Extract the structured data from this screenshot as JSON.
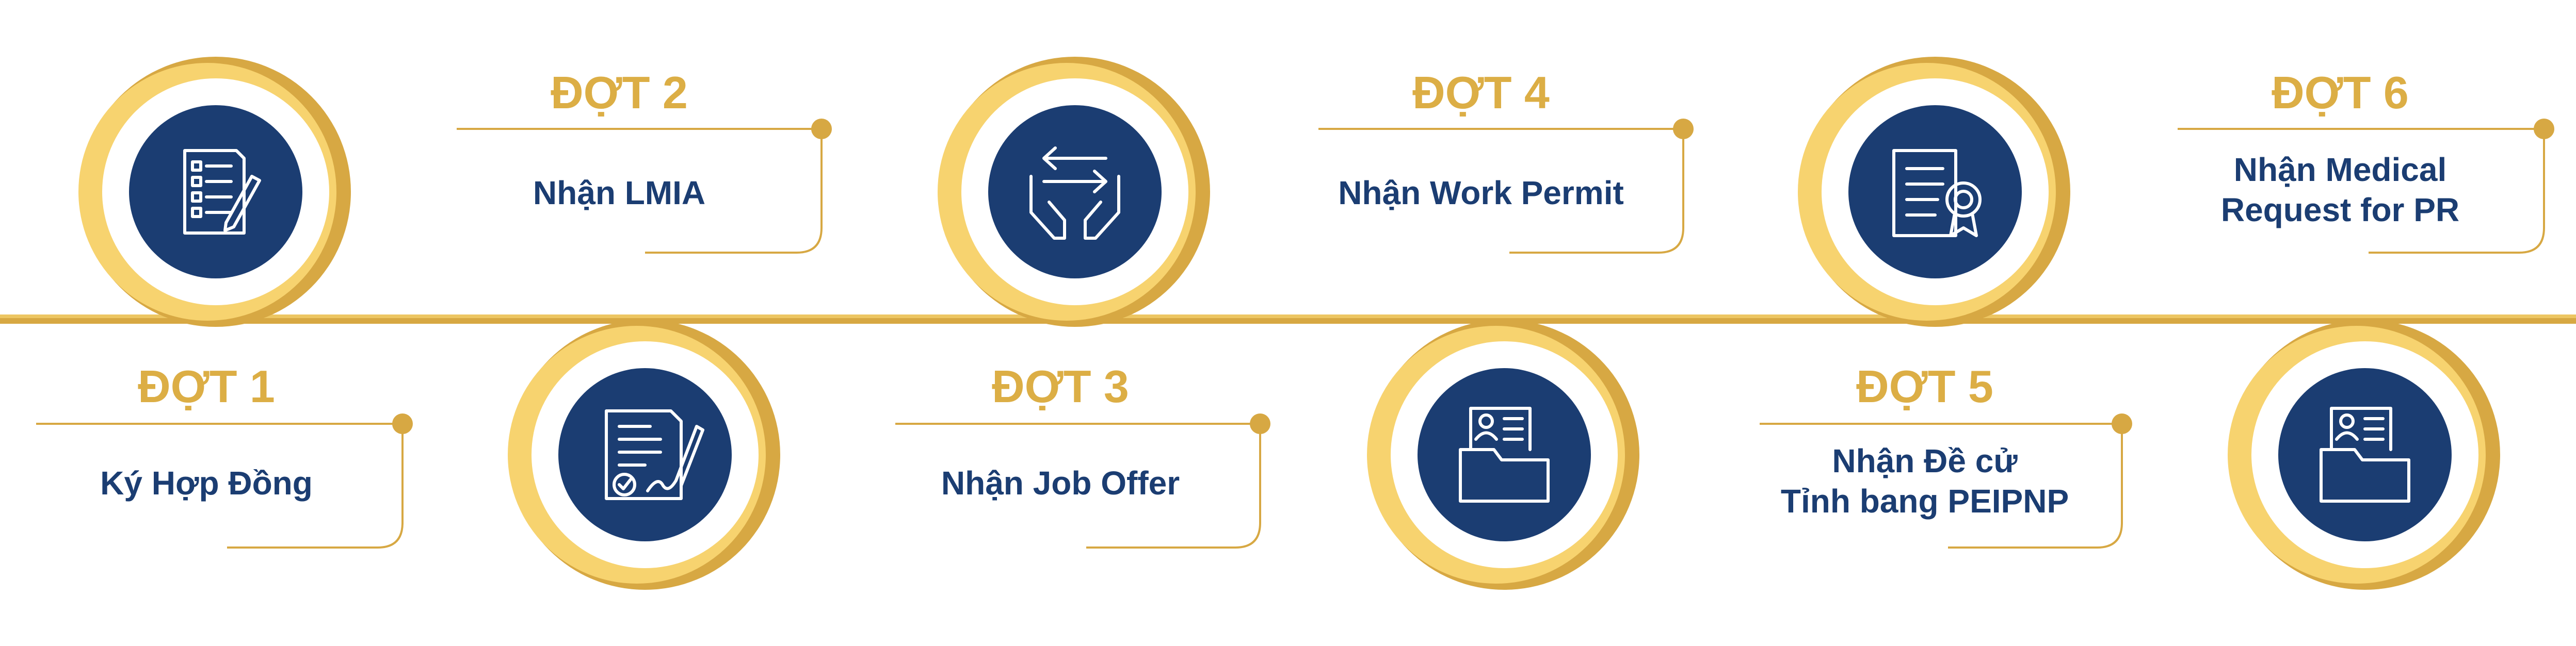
{
  "colors": {
    "gold_light": "#f7d36f",
    "gold_dark": "#d7a843",
    "navy": "#1b3d72",
    "heading_gold": "#dcae45"
  },
  "steps": [
    {
      "title": "ĐỢT 1",
      "lines": [
        "Ký Hợp Đồng"
      ],
      "icon": "checklist-icon"
    },
    {
      "title": "ĐỢT 2",
      "lines": [
        "Nhận LMIA"
      ],
      "icon": "signed-document-icon"
    },
    {
      "title": "ĐỢT 3",
      "lines": [
        "Nhận Job Offer"
      ],
      "icon": "exchange-hands-icon"
    },
    {
      "title": "ĐỢT 4",
      "lines": [
        "Nhận Work Permit"
      ],
      "icon": "profile-folder-icon"
    },
    {
      "title": "ĐỢT 5",
      "lines": [
        "Nhận Đề cử",
        "Tỉnh bang PEIPNP"
      ],
      "icon": "certificate-icon"
    },
    {
      "title": "ĐỢT 6",
      "lines": [
        "Nhận Medical",
        "Request for PR"
      ],
      "icon": "profile-folder-icon"
    }
  ]
}
